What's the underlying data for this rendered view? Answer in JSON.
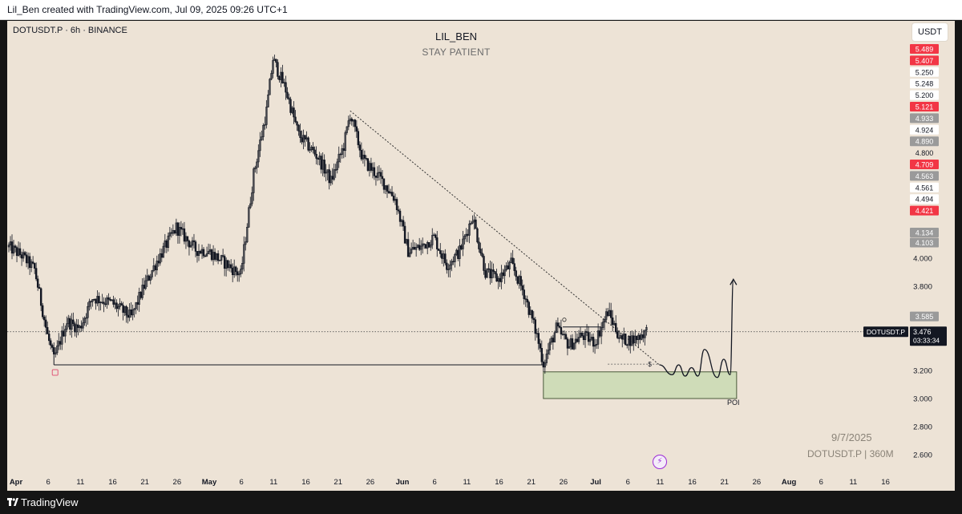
{
  "header": {
    "attribution": "Lil_Ben created with TradingView.com, Jul 09, 2025 09:26 UTC+1"
  },
  "symbol_info": "DOTUSDT.P · 6h · BINANCE",
  "currency_button": "USDT",
  "annotations": {
    "poi_label": "POI",
    "watermark_date": "9/7/2025",
    "watermark_symbol": "DOTUSDT.P | 360M",
    "last_price_symbol": "DOTUSDT.P",
    "last_price": "3.476",
    "countdown": "03:33:34",
    "level_price_label": "3.585"
  },
  "footer": {
    "brand": "TradingView"
  },
  "colors": {
    "background": "#ede3d6",
    "candle": "#131722",
    "poi_fill": "#cfdcb8",
    "poi_border": "#4a5a3a",
    "price_tag_red": "#f23645",
    "price_tag_grey": "#9a9a9a",
    "accent_purple": "#9c2bd6"
  },
  "chart_data": {
    "type": "candlestick",
    "title": "LIL_BEN",
    "subtitle": "STAY PATIENT",
    "interval": "6h",
    "y_ticks": [
      4.0,
      3.8,
      3.2,
      3.0,
      2.8,
      2.6
    ],
    "y_range": [
      2.5,
      5.5
    ],
    "x_ticks": [
      "Apr",
      "6",
      "11",
      "16",
      "21",
      "26",
      "May",
      "6",
      "11",
      "16",
      "21",
      "26",
      "Jun",
      "6",
      "11",
      "16",
      "21",
      "26",
      "Jul",
      "6",
      "11",
      "16",
      "21",
      "26",
      "Aug",
      "6",
      "11",
      "16"
    ],
    "price_scale_labels": [
      {
        "value": "5.489",
        "style": "red"
      },
      {
        "value": "5.407",
        "style": "red"
      },
      {
        "value": "5.250",
        "style": "white"
      },
      {
        "value": "5.248",
        "style": "white"
      },
      {
        "value": "5.200",
        "style": "white"
      },
      {
        "value": "5.121",
        "style": "red"
      },
      {
        "value": "4.933",
        "style": "grey"
      },
      {
        "value": "4.924",
        "style": "white"
      },
      {
        "value": "4.890",
        "style": "grey"
      },
      {
        "value": "4.800",
        "style": "plain"
      },
      {
        "value": "4.709",
        "style": "red"
      },
      {
        "value": "4.563",
        "style": "grey"
      },
      {
        "value": "4.561",
        "style": "white"
      },
      {
        "value": "4.494",
        "style": "white"
      },
      {
        "value": "4.421",
        "style": "red"
      },
      {
        "value": "4.134",
        "style": "grey"
      },
      {
        "value": "4.103",
        "style": "grey"
      }
    ],
    "price_path": [
      [
        "2025-04-01",
        4.08
      ],
      [
        "2025-04-03",
        4.02
      ],
      [
        "2025-04-05",
        3.92
      ],
      [
        "2025-04-07",
        3.45
      ],
      [
        "2025-04-08",
        3.28
      ],
      [
        "2025-04-10",
        3.55
      ],
      [
        "2025-04-12",
        3.5
      ],
      [
        "2025-04-14",
        3.72
      ],
      [
        "2025-04-17",
        3.68
      ],
      [
        "2025-04-20",
        3.58
      ],
      [
        "2025-04-22",
        3.8
      ],
      [
        "2025-04-24",
        3.98
      ],
      [
        "2025-04-27",
        4.22
      ],
      [
        "2025-04-30",
        4.06
      ],
      [
        "2025-05-02",
        4.05
      ],
      [
        "2025-05-05",
        3.95
      ],
      [
        "2025-05-07",
        3.88
      ],
      [
        "2025-05-09",
        4.6
      ],
      [
        "2025-05-11",
        5.05
      ],
      [
        "2025-05-12",
        5.42
      ],
      [
        "2025-05-14",
        5.2
      ],
      [
        "2025-05-16",
        4.88
      ],
      [
        "2025-05-19",
        4.72
      ],
      [
        "2025-05-21",
        4.55
      ],
      [
        "2025-05-23",
        4.8
      ],
      [
        "2025-05-24",
        5.03
      ],
      [
        "2025-05-26",
        4.7
      ],
      [
        "2025-05-29",
        4.55
      ],
      [
        "2025-05-31",
        4.42
      ],
      [
        "2025-06-02",
        4.05
      ],
      [
        "2025-06-04",
        4.08
      ],
      [
        "2025-06-06",
        4.15
      ],
      [
        "2025-06-08",
        3.95
      ],
      [
        "2025-06-10",
        4.05
      ],
      [
        "2025-06-12",
        4.3
      ],
      [
        "2025-06-14",
        3.9
      ],
      [
        "2025-06-16",
        3.85
      ],
      [
        "2025-06-18",
        3.96
      ],
      [
        "2025-06-20",
        3.75
      ],
      [
        "2025-06-22",
        3.45
      ],
      [
        "2025-06-23",
        3.25
      ],
      [
        "2025-06-25",
        3.5
      ],
      [
        "2025-06-27",
        3.38
      ],
      [
        "2025-06-29",
        3.45
      ],
      [
        "2025-07-01",
        3.4
      ],
      [
        "2025-07-03",
        3.62
      ],
      [
        "2025-07-05",
        3.42
      ],
      [
        "2025-07-07",
        3.42
      ],
      [
        "2025-07-09",
        3.48
      ]
    ],
    "horizontal_support": {
      "price": 3.24,
      "from": "2025-04-08",
      "to": "2025-06-23"
    },
    "current_price_line": 3.476,
    "trendline": {
      "from": [
        "2025-05-24",
        5.05
      ],
      "to": [
        "2025-07-11",
        3.24
      ]
    },
    "poi_zone": {
      "top": 3.19,
      "bottom": 3.0,
      "from": "2025-06-23",
      "to": "2025-07-23"
    },
    "range_line": {
      "price": 3.51,
      "from": "2025-06-26",
      "to": "2025-07-02"
    },
    "projection_path": [
      [
        "2025-07-11",
        3.24
      ],
      [
        "2025-07-13",
        3.17
      ],
      [
        "2025-07-14",
        3.24
      ],
      [
        "2025-07-15",
        3.16
      ],
      [
        "2025-07-16",
        3.22
      ],
      [
        "2025-07-17",
        3.16
      ],
      [
        "2025-07-18",
        3.35
      ],
      [
        "2025-07-20",
        3.15
      ],
      [
        "2025-07-21",
        3.28
      ],
      [
        "2025-07-22",
        3.17
      ],
      [
        "2025-07-22.5",
        3.85
      ]
    ]
  }
}
